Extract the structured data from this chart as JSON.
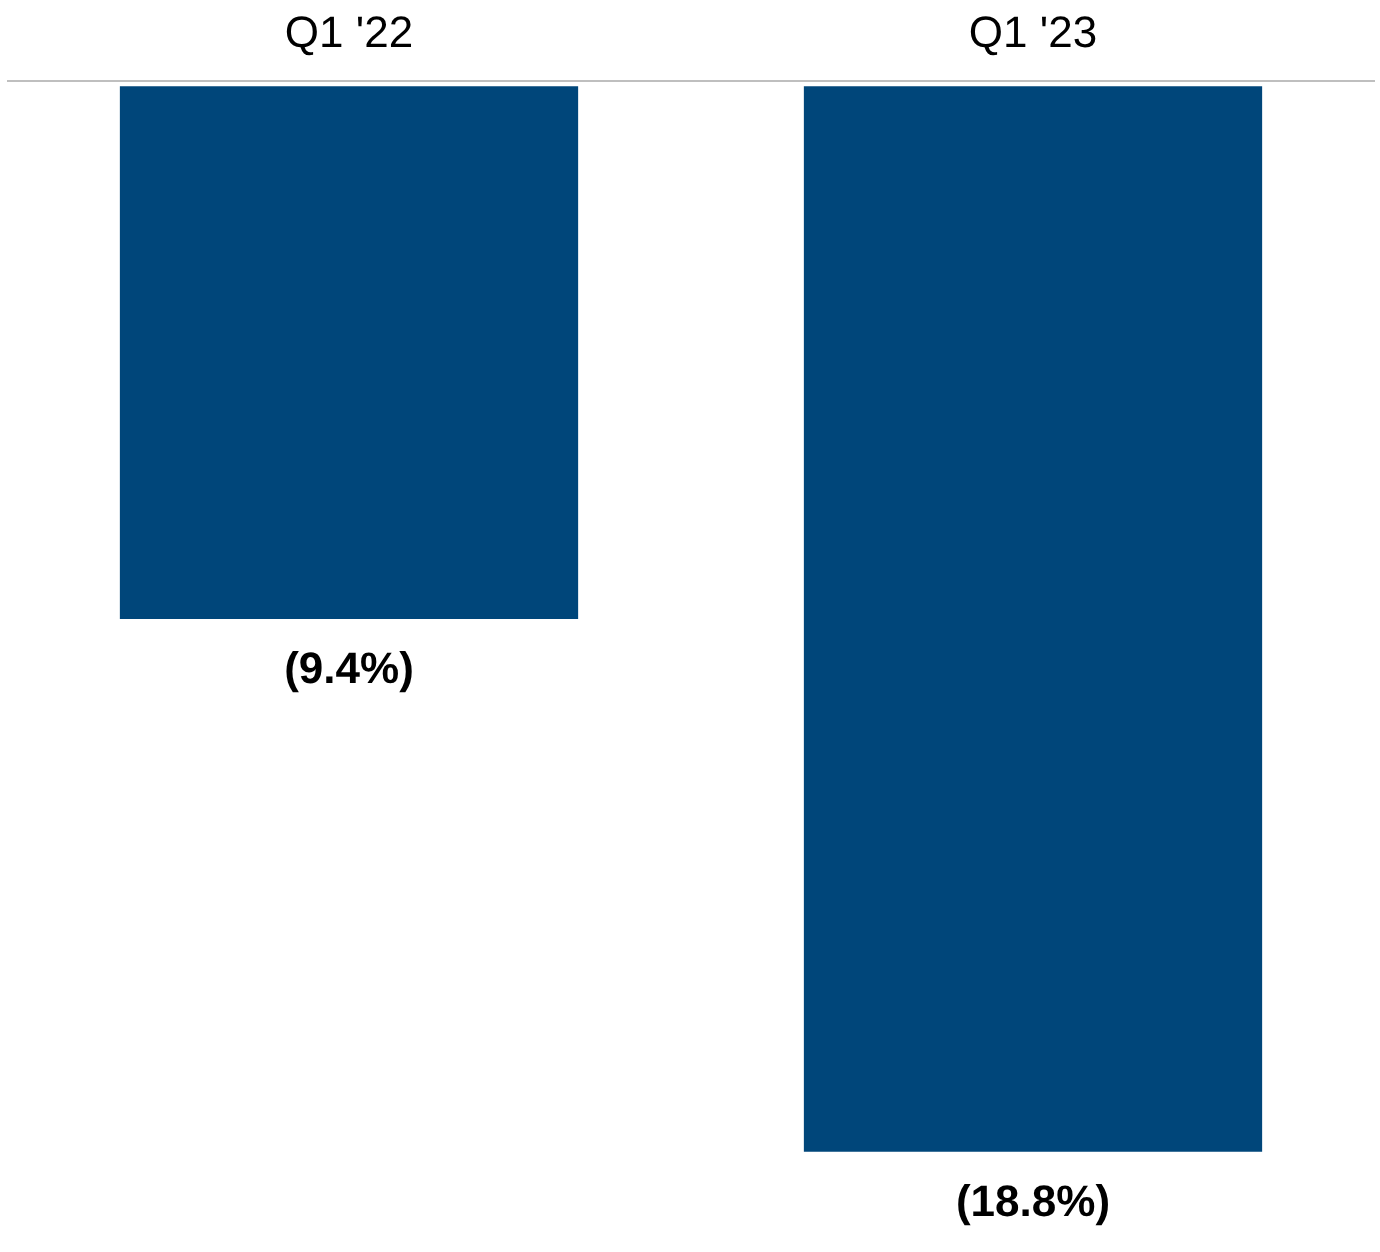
{
  "chart_data": {
    "type": "bar",
    "categories": [
      "Q1 '22",
      "Q1 '23"
    ],
    "values": [
      -9.4,
      -18.8
    ],
    "value_labels": [
      "(9.4%)",
      "(18.8%)"
    ],
    "color": "#00467a",
    "grid": false
  }
}
